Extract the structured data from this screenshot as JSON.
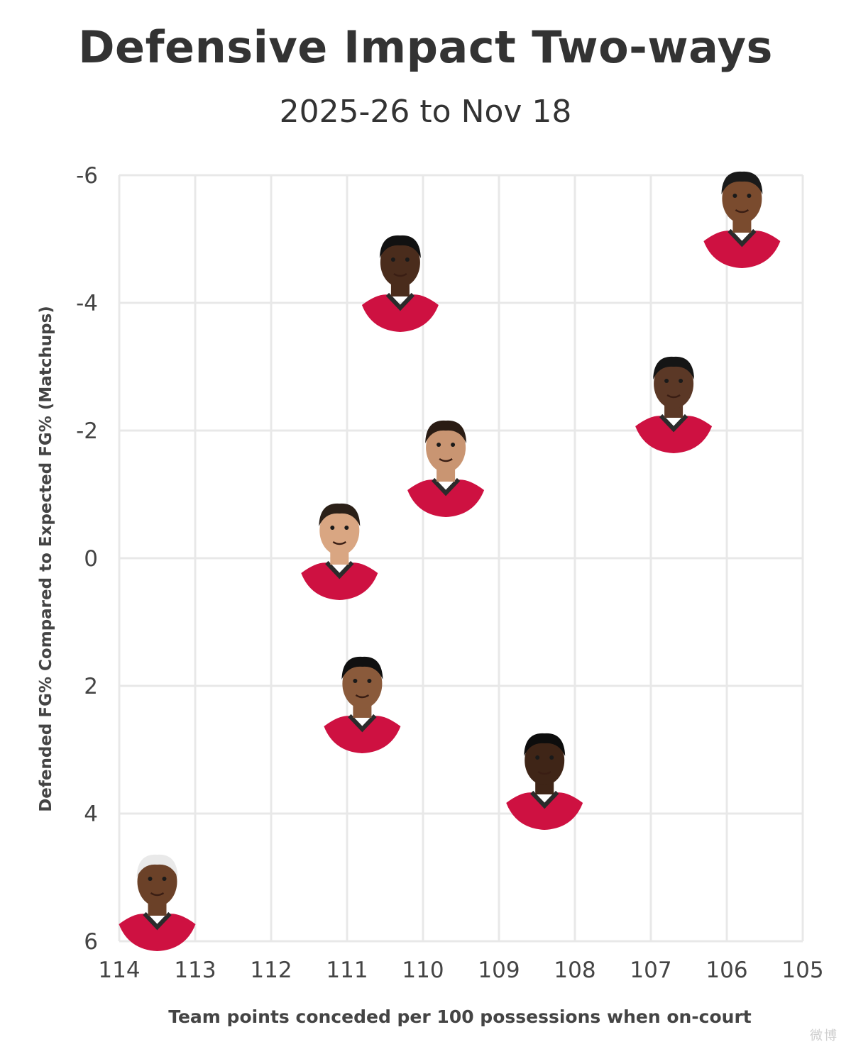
{
  "chart_data": {
    "type": "scatter",
    "title": "Defensive Impact Two-ways",
    "subtitle": "2025-26 to Nov 18",
    "xlabel": "Team points conceded per 100 possessions when on-court",
    "ylabel": "Defended FG% Compared to Expected FG% (Matchups)",
    "xlim": [
      114,
      105
    ],
    "ylim": [
      -6,
      6
    ],
    "x_reversed": true,
    "y_reversed": true,
    "grid": true,
    "x_ticks": [
      "114",
      "113",
      "112",
      "111",
      "110",
      "109",
      "108",
      "107",
      "106",
      "105"
    ],
    "y_ticks": [
      "-6",
      "-4",
      "-2",
      "0",
      "2",
      "4",
      "6"
    ],
    "marker": "player-headshot",
    "points": [
      {
        "x": 105.8,
        "y": -4.9
      },
      {
        "x": 110.3,
        "y": -3.9
      },
      {
        "x": 106.7,
        "y": -2.0
      },
      {
        "x": 109.7,
        "y": -1.0
      },
      {
        "x": 111.1,
        "y": 0.3
      },
      {
        "x": 110.8,
        "y": 2.7
      },
      {
        "x": 108.4,
        "y": 3.9
      },
      {
        "x": 113.5,
        "y": 5.8
      }
    ],
    "colors": {
      "grid": "#e8e8e8",
      "jersey": "#ce1141",
      "jersey_trim": "#2b2b2b",
      "text": "#333333"
    }
  },
  "watermark": "微博"
}
